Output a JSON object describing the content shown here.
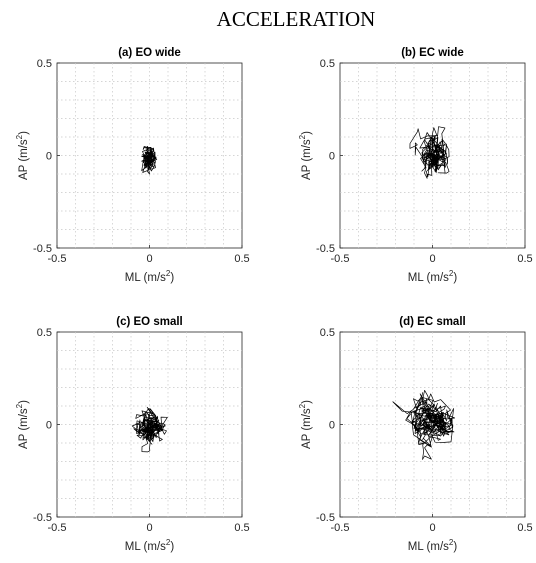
{
  "figure_title": "ACCELERATION",
  "chart_data": [
    {
      "type": "line",
      "title": "(a) EO wide",
      "xlabel": "ML (m/s",
      "ylabel": "AP (m/s",
      "unit_exponent": "2",
      "xlim": [
        -0.5,
        0.5
      ],
      "ylim": [
        -0.5,
        0.5
      ],
      "xticks": [
        "-0.5",
        "0",
        "0.5"
      ],
      "yticks": [
        "-0.5",
        "0",
        "0.5"
      ],
      "grid": true,
      "series": [
        {
          "center": [
            0.0,
            -0.01
          ],
          "spread": [
            0.028,
            0.045
          ],
          "range_x": [
            -0.06,
            0.05
          ],
          "range_y": [
            -0.19,
            0.18
          ],
          "samples": 220,
          "seed": 11
        }
      ]
    },
    {
      "type": "line",
      "title": "(b) EC wide",
      "xlabel": "ML (m/s",
      "ylabel": "AP (m/s",
      "unit_exponent": "2",
      "xlim": [
        -0.5,
        0.5
      ],
      "ylim": [
        -0.5,
        0.5
      ],
      "xticks": [
        "-0.5",
        "0",
        "0.5"
      ],
      "yticks": [
        "-0.5",
        "0",
        "0.5"
      ],
      "grid": true,
      "series": [
        {
          "center": [
            0.0,
            0.0
          ],
          "spread": [
            0.045,
            0.075
          ],
          "range_x": [
            -0.16,
            0.09
          ],
          "range_y": [
            -0.22,
            0.25
          ],
          "samples": 280,
          "seed": 23
        }
      ]
    },
    {
      "type": "line",
      "title": "(c) EO small",
      "xlabel": "ML (m/s",
      "ylabel": "AP (m/s",
      "unit_exponent": "2",
      "xlim": [
        -0.5,
        0.5
      ],
      "ylim": [
        -0.5,
        0.5
      ],
      "xticks": [
        "-0.5",
        "0",
        "0.5"
      ],
      "yticks": [
        "-0.5",
        "0",
        "0.5"
      ],
      "grid": true,
      "series": [
        {
          "center": [
            0.0,
            0.0
          ],
          "spread": [
            0.045,
            0.06
          ],
          "range_x": [
            -0.13,
            0.13
          ],
          "range_y": [
            -0.23,
            0.19
          ],
          "samples": 280,
          "seed": 37
        }
      ]
    },
    {
      "type": "line",
      "title": "(d) EC small",
      "xlabel": "ML (m/s",
      "ylabel": "AP (m/s",
      "unit_exponent": "2",
      "xlim": [
        -0.5,
        0.5
      ],
      "ylim": [
        -0.5,
        0.5
      ],
      "xticks": [
        "-0.5",
        "0",
        "0.5"
      ],
      "yticks": [
        "-0.5",
        "0",
        "0.5"
      ],
      "grid": true,
      "series": [
        {
          "center": [
            0.0,
            0.0
          ],
          "spread": [
            0.075,
            0.085
          ],
          "range_x": [
            -0.22,
            0.22
          ],
          "range_y": [
            -0.22,
            0.27
          ],
          "samples": 320,
          "seed": 51
        }
      ]
    }
  ]
}
